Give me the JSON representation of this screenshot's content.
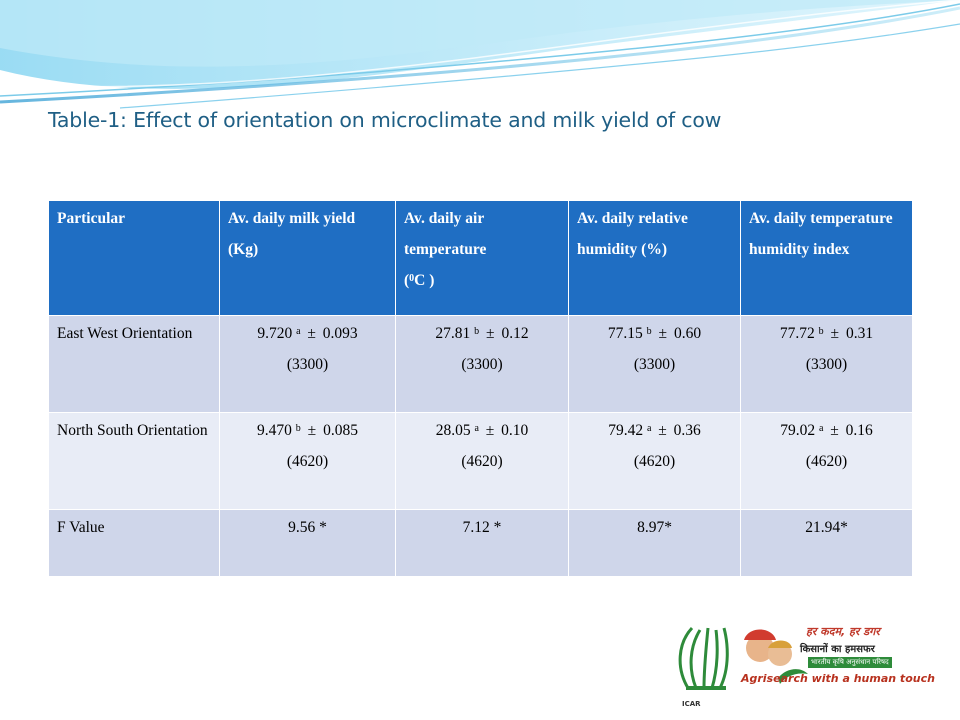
{
  "title": "Table-1: Effect of orientation on microclimate and milk yield of cow",
  "table": {
    "headers": [
      "Particular",
      "Av. daily milk yield (Kg)",
      "Av. daily air temperature",
      "Av. daily relative humidity (%)",
      "Av. daily temperature humidity index"
    ],
    "temp_unit": {
      "open": "(",
      "sup": "0",
      "unit": "C  )"
    },
    "rows": [
      {
        "label": "East West Orientation",
        "cells": [
          {
            "value": "9.720",
            "sup": "a",
            "pm": "0.093",
            "n": "(3300)"
          },
          {
            "value": "27.81",
            "sup": "b",
            "pm": "0.12",
            "n": "(3300)"
          },
          {
            "value": "77.15",
            "sup": "b",
            "pm": "0.60",
            "n": "(3300)"
          },
          {
            "value": "77.72",
            "sup": "b",
            "pm": "0.31",
            "n": "(3300)"
          }
        ]
      },
      {
        "label": "North South Orientation",
        "cells": [
          {
            "value": "9.470",
            "sup": "b",
            "pm": "0.085",
            "n": "(4620)"
          },
          {
            "value": "28.05",
            "sup": "a",
            "pm": "0.10",
            "n": "(4620)"
          },
          {
            "value": "79.42",
            "sup": "a",
            "pm": "0.36",
            "n": "(4620)"
          },
          {
            "value": "79.02",
            "sup": "a",
            "pm": "0.16",
            "n": "(4620)"
          }
        ]
      }
    ],
    "pm_symbol": "±",
    "f_row": {
      "label": "F Value",
      "values": [
        "9.56 *",
        "7.12 *",
        "8.97*",
        "21.94*"
      ]
    }
  },
  "logo": {
    "org_name": "ICAR",
    "hindi_line1": "हर कदम, हर डगर",
    "hindi_line2": "किसानों का हमसफर",
    "hindi_line3": "भारतीय कृषि अनुसंधान परिषद",
    "tagline": "Agrisearch with a human touch"
  },
  "colors": {
    "header_bg": "#1f6ec3",
    "row_dark": "#cfd6ea",
    "row_light": "#e8ecf6",
    "title": "#1f5f85",
    "swoosh": "#6ec6e8"
  }
}
